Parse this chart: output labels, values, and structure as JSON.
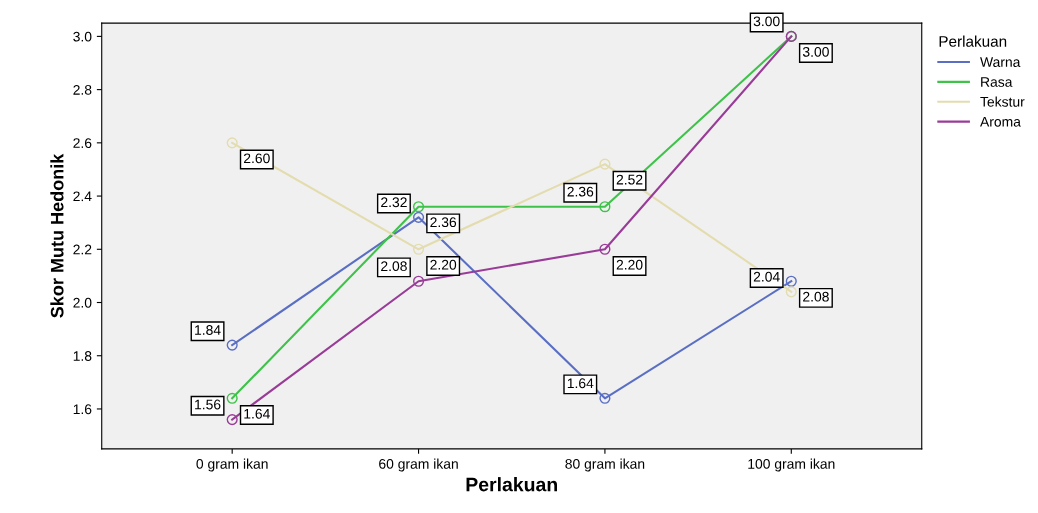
{
  "chart_data": {
    "type": "line",
    "xlabel": "Perlakuan",
    "ylabel": "Skor Mutu Hedonik",
    "legend_title": "Perlakuan",
    "categories": [
      "0 gram ikan",
      "60 gram ikan",
      "80 gram ikan",
      "100 gram ikan"
    ],
    "series": [
      {
        "name": "Warna",
        "color": "#5a6fc4",
        "values": [
          1.84,
          2.32,
          1.64,
          2.08
        ],
        "value_labels": [
          "1.84",
          "2.32",
          "1.64",
          "2.08"
        ]
      },
      {
        "name": "Rasa",
        "color": "#3ec24a",
        "values": [
          1.64,
          2.36,
          2.36,
          3.0
        ],
        "value_labels": [
          "1.64",
          "2.36",
          "2.36",
          "3.00"
        ]
      },
      {
        "name": "Tekstur",
        "color": "#e3dcae",
        "values": [
          2.6,
          2.2,
          2.52,
          2.04
        ],
        "value_labels": [
          "2.60",
          "2.20",
          "2.52",
          "2.04"
        ]
      },
      {
        "name": "Aroma",
        "color": "#993c98",
        "values": [
          1.56,
          2.08,
          2.2,
          3.0
        ],
        "value_labels": [
          "1.56",
          "2.08",
          "2.20",
          "3.00"
        ]
      }
    ],
    "ylim": [
      1.45,
      3.05
    ],
    "yticks": [
      {
        "value": 1.6,
        "label": "1.6"
      },
      {
        "value": 1.8,
        "label": "1.8"
      },
      {
        "value": 2.0,
        "label": "2.0"
      },
      {
        "value": 2.2,
        "label": "2.2"
      },
      {
        "value": 2.4,
        "label": "2.4"
      },
      {
        "value": 2.6,
        "label": "2.6"
      },
      {
        "value": 2.8,
        "label": "2.8"
      },
      {
        "value": 3.0,
        "label": "3.0"
      }
    ],
    "marker": "circle",
    "line_style": "solid",
    "grid": false,
    "legend": "top right"
  }
}
